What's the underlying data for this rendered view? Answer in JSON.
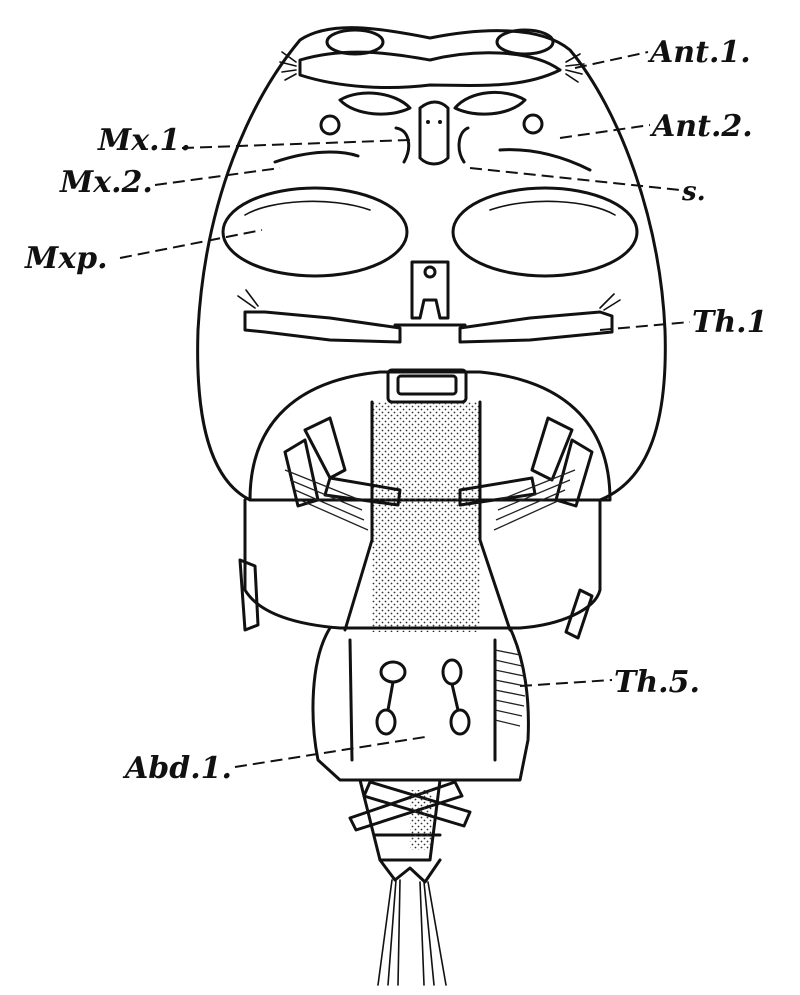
{
  "labels": {
    "ant1": "Ant.1.",
    "ant2": "Ant.2.",
    "mx1": "Mx.1.",
    "mx2": "Mx.2.",
    "s": "s.",
    "mxp": "Mxp.",
    "th1": "Th.1",
    "th5": "Th.5.",
    "abd1": "Abd.1."
  }
}
